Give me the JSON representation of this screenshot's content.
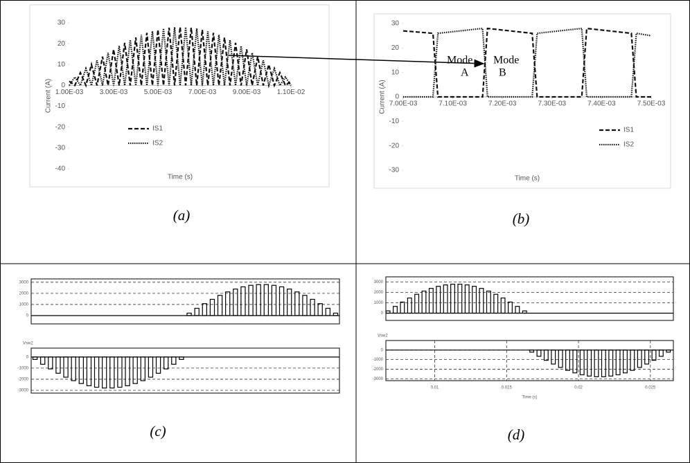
{
  "chart_data": [
    {
      "type": "line",
      "ylabel": "Current (A)",
      "xlabel": "Time (s)",
      "x": [
        0.001,
        0.00125,
        0.0015,
        0.00175,
        0.002,
        0.00225,
        0.0025,
        0.00275,
        0.003,
        0.00325,
        0.0035,
        0.00375,
        0.004,
        0.00425,
        0.0045,
        0.00475,
        0.005,
        0.00525,
        0.0055,
        0.00575,
        0.006,
        0.00625,
        0.0065,
        0.00675,
        0.007,
        0.00725,
        0.0075,
        0.00775,
        0.008,
        0.00825,
        0.0085,
        0.00875,
        0.009,
        0.00925,
        0.0095,
        0.00975,
        0.01,
        0.01025,
        0.0105,
        0.01075,
        0.011
      ],
      "series": [
        {
          "name": "IS1",
          "color": "#111111",
          "line_style": "dashed",
          "values": [
            2,
            0,
            6.1,
            0,
            10,
            0,
            13.8,
            0,
            17.3,
            0,
            20.4,
            0,
            23,
            0,
            25.2,
            0,
            26.7,
            0,
            27.7,
            0,
            28,
            0,
            27.7,
            0,
            26.7,
            0,
            25.2,
            0,
            23,
            0,
            20.4,
            0,
            17.3,
            0,
            13.8,
            0,
            10,
            0,
            6.1,
            0,
            2
          ]
        },
        {
          "name": "IS2",
          "color": "#111111",
          "line_style": "dotted",
          "values": [
            0,
            4,
            0,
            8.1,
            0,
            12,
            0,
            15.6,
            0,
            18.9,
            0,
            21.8,
            0,
            24.2,
            0,
            26,
            0,
            27.3,
            0,
            27.9,
            0,
            27.9,
            0,
            27.3,
            0,
            26,
            0,
            24.2,
            0,
            21.8,
            0,
            18.9,
            0,
            15.6,
            0,
            12,
            0,
            8.1,
            0,
            4,
            0
          ]
        }
      ],
      "xlim": [
        0.001,
        0.011
      ],
      "xticks": [
        {
          "value": 0.001,
          "label": "1.00E-03"
        },
        {
          "value": 0.003,
          "label": "3.00E-03"
        },
        {
          "value": 0.005,
          "label": "5.00E-03"
        },
        {
          "value": 0.007,
          "label": "7.00E-03"
        },
        {
          "value": 0.009,
          "label": "9.00E-03"
        },
        {
          "value": 0.011,
          "label": "1.10E-02"
        }
      ],
      "ylim": [
        -40,
        30
      ],
      "yticks": [
        -40,
        -30,
        -20,
        -10,
        0,
        10,
        20,
        30
      ],
      "grid": false,
      "legend": "lower-left"
    },
    {
      "type": "line",
      "ylabel": "Current (A)",
      "xlabel": "Time (s)",
      "x": [
        0.007,
        0.00706,
        0.00707,
        0.00716,
        0.00717,
        0.00726,
        0.00727,
        0.00736,
        0.00737,
        0.00746,
        0.00747,
        0.0075
      ],
      "series": [
        {
          "name": "IS1",
          "color": "#111111",
          "line_style": "dashed",
          "values": [
            27,
            26,
            0,
            0,
            28,
            26,
            0,
            0,
            28,
            26,
            0,
            0
          ]
        },
        {
          "name": "IS2",
          "color": "#111111",
          "line_style": "dotted",
          "values": [
            0,
            0,
            26,
            28,
            0,
            0,
            26,
            28,
            0,
            0,
            26,
            25
          ]
        }
      ],
      "xlim": [
        0.007,
        0.0075
      ],
      "xticks": [
        {
          "value": 0.007,
          "label": "7.00E-03"
        },
        {
          "value": 0.0071,
          "label": "7.10E-03"
        },
        {
          "value": 0.0072,
          "label": "7.20E-03"
        },
        {
          "value": 0.0073,
          "label": "7.30E-03"
        },
        {
          "value": 0.0074,
          "label": "7.40E-03"
        },
        {
          "value": 0.0075,
          "label": "7.50E-03"
        }
      ],
      "ylim": [
        -30,
        30
      ],
      "yticks": [
        -30,
        -20,
        -10,
        0,
        10,
        20,
        30
      ],
      "grid": false,
      "legend": "lower-right",
      "annotations": [
        [
          "Mode",
          "A"
        ],
        [
          "Mode",
          "B"
        ]
      ]
    },
    {
      "type": "pulse",
      "color": "#000000",
      "x": [
        0.5125,
        0.5375,
        0.5625,
        0.5875,
        0.6125,
        0.6375,
        0.6625,
        0.6875,
        0.7125,
        0.7375,
        0.7625,
        0.7875,
        0.8125,
        0.8375,
        0.8625,
        0.8875,
        0.9125,
        0.9375,
        0.9625,
        0.9875
      ],
      "values": [
        220,
        654,
        1072,
        1463,
        1818,
        2129,
        2387,
        2587,
        2723,
        2791,
        2791,
        2723,
        2587,
        2387,
        2129,
        1818,
        1463,
        1072,
        654,
        220
      ],
      "xlim": [
        0,
        1
      ],
      "ylim": [
        -750,
        3300
      ],
      "yticks": [
        0,
        1000,
        2000,
        3000
      ],
      "grid": true
    },
    {
      "type": "pulse",
      "color": "#000000",
      "ylabel": "Vsw2",
      "x": [
        0.0125,
        0.0375,
        0.0625,
        0.0875,
        0.1125,
        0.1375,
        0.1625,
        0.1875,
        0.2125,
        0.2375,
        0.2625,
        0.2875,
        0.3125,
        0.3375,
        0.3625,
        0.3875,
        0.4125,
        0.4375,
        0.4625,
        0.4875
      ],
      "values": [
        -220,
        -654,
        -1072,
        -1463,
        -1818,
        -2129,
        -2387,
        -2587,
        -2723,
        -2791,
        -2791,
        -2723,
        -2587,
        -2387,
        -2129,
        -1818,
        -1463,
        -1072,
        -654,
        -220
      ],
      "xlim": [
        0,
        1
      ],
      "ylim": [
        -3250,
        800
      ],
      "yticks": [
        -3000,
        -2000,
        -1000,
        0
      ],
      "grid": true
    },
    {
      "type": "pulse",
      "color": "#000000",
      "x": [
        0.00675,
        0.00725,
        0.00775,
        0.00825,
        0.00875,
        0.00925,
        0.00975,
        0.01025,
        0.01075,
        0.01125,
        0.01175,
        0.01225,
        0.01275,
        0.01325,
        0.01375,
        0.01425,
        0.01475,
        0.01525,
        0.01575,
        0.01625
      ],
      "values": [
        220,
        654,
        1072,
        1463,
        1818,
        2129,
        2387,
        2587,
        2723,
        2791,
        2791,
        2723,
        2587,
        2387,
        2129,
        1818,
        1463,
        1072,
        654,
        220
      ],
      "xlim": [
        0.0066,
        0.0266
      ],
      "ylim": [
        -700,
        3500
      ],
      "yticks": [
        0,
        1000,
        2000,
        3000
      ],
      "grid": true
    },
    {
      "type": "pulse",
      "color": "#000000",
      "ylabel": "Vsw2",
      "xlabel": "Time (s)",
      "x": [
        0.01675,
        0.01725,
        0.01775,
        0.01825,
        0.01875,
        0.01925,
        0.01975,
        0.02025,
        0.02075,
        0.02125,
        0.02175,
        0.02225,
        0.02275,
        0.02325,
        0.02375,
        0.02425,
        0.02475,
        0.02525,
        0.02575,
        0.02625
      ],
      "values": [
        -220,
        -654,
        -1072,
        -1463,
        -1818,
        -2129,
        -2387,
        -2587,
        -2723,
        -2791,
        -2791,
        -2723,
        -2587,
        -2387,
        -2129,
        -1818,
        -1463,
        -1072,
        -654,
        -220
      ],
      "xlim": [
        0.0066,
        0.0266
      ],
      "xticks": [
        0.01,
        0.015,
        0.02,
        0.025
      ],
      "ylim": [
        -3200,
        1000
      ],
      "yticks": [
        -3000,
        -2000,
        -1000,
        0
      ],
      "grid": true
    }
  ],
  "captions": [
    "(a)",
    "(b)",
    "(c)",
    "(d)"
  ]
}
